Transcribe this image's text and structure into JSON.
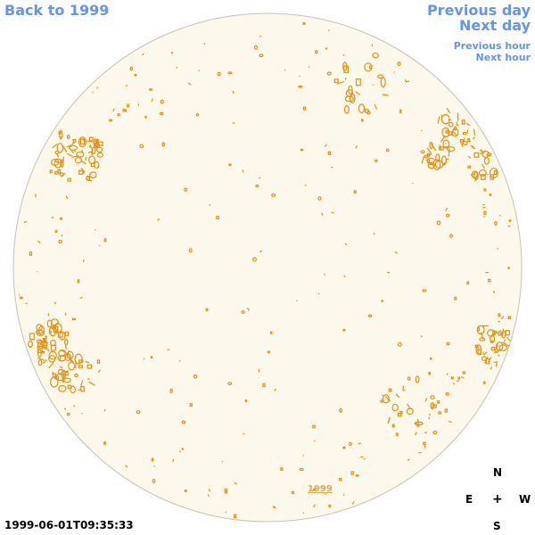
{
  "nav": {
    "back_label": "Back to 1999",
    "previous_day_label": "Previous day",
    "next_day_label": "Next day",
    "previous_hour_label": "Previous hour",
    "next_hour_label": "Next hour"
  },
  "image": {
    "timestamp": "1999-06-01T09:35:33",
    "year_link": "1999"
  },
  "compass": {
    "north": "N",
    "east": "E",
    "center": "+",
    "west": "W",
    "south": "S"
  },
  "colors": {
    "link": "#6495ed",
    "disk_fill": "#fdf8ec",
    "disk_border": "#c8c2b4",
    "contour": "#e8900c",
    "year_label": "#e8a64a"
  }
}
